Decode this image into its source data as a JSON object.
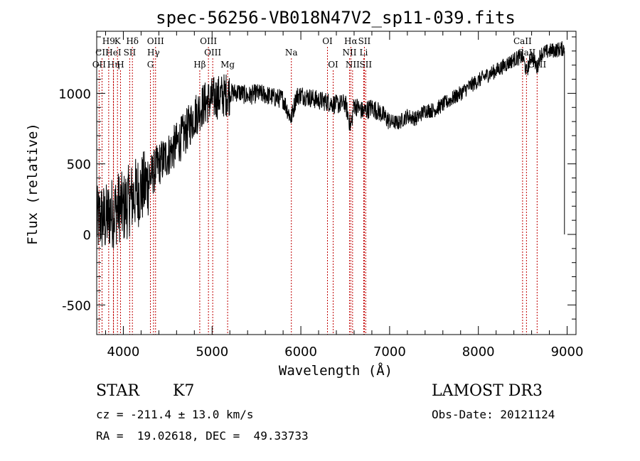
{
  "chart_data": {
    "type": "line",
    "title": "spec-56256-VB018N47V2_sp11-039.fits",
    "xlabel": "Wavelength (Å)",
    "ylabel": "Flux (relative)",
    "xlim": [
      3700,
      9100
    ],
    "ylim": [
      -710,
      1440
    ],
    "xticks": [
      4000,
      5000,
      6000,
      7000,
      8000,
      9000
    ],
    "yticks": [
      -500,
      0,
      500,
      1000
    ],
    "series": [
      {
        "name": "flux",
        "x": [
          3700,
          3750,
          3800,
          3850,
          3900,
          3950,
          4000,
          4050,
          4100,
          4150,
          4200,
          4250,
          4300,
          4350,
          4400,
          4450,
          4500,
          4550,
          4600,
          4650,
          4700,
          4750,
          4800,
          4850,
          4900,
          4950,
          5000,
          5100,
          5200,
          5300,
          5400,
          5500,
          5600,
          5700,
          5800,
          5890,
          5950,
          6000,
          6100,
          6200,
          6300,
          6400,
          6500,
          6563,
          6600,
          6700,
          6800,
          6900,
          7000,
          7100,
          7200,
          7300,
          7400,
          7500,
          7600,
          7700,
          7800,
          7900,
          8000,
          8100,
          8200,
          8300,
          8400,
          8500,
          8542,
          8600,
          8662,
          8700,
          8800,
          8900,
          8970
        ],
        "y": [
          80,
          120,
          100,
          150,
          160,
          200,
          180,
          230,
          260,
          300,
          320,
          350,
          400,
          450,
          500,
          530,
          560,
          600,
          640,
          680,
          720,
          780,
          840,
          880,
          920,
          940,
          960,
          980,
          1000,
          1010,
          980,
          1000,
          990,
          970,
          960,
          820,
          980,
          990,
          970,
          950,
          940,
          920,
          930,
          760,
          920,
          870,
          900,
          860,
          800,
          790,
          840,
          820,
          880,
          880,
          920,
          960,
          1000,
          1050,
          1090,
          1130,
          1160,
          1200,
          1240,
          1260,
          1150,
          1270,
          1180,
          1280,
          1300,
          1310,
          1320
        ]
      }
    ],
    "lines": [
      {
        "name": "OII",
        "wave": 3727,
        "row": 3
      },
      {
        "name": "H9",
        "wave": 3835,
        "row": 1
      },
      {
        "name": "CII",
        "wave": 3760,
        "row": 2
      },
      {
        "name": "Hη",
        "wave": 3889,
        "row": 3
      },
      {
        "name": "K",
        "wave": 3934,
        "row": 1
      },
      {
        "name": "HeI",
        "wave": 3888,
        "row": 2
      },
      {
        "name": "H",
        "wave": 3968,
        "row": 3
      },
      {
        "name": "SII",
        "wave": 4072,
        "row": 2
      },
      {
        "name": "Hδ",
        "wave": 4102,
        "row": 1
      },
      {
        "name": "OIII",
        "wave": 4363,
        "row": 1
      },
      {
        "name": "Hγ",
        "wave": 4340,
        "row": 2
      },
      {
        "name": "G",
        "wave": 4305,
        "row": 3
      },
      {
        "name": "Hβ",
        "wave": 4861,
        "row": 3
      },
      {
        "name": "OIII",
        "wave": 4959,
        "row": 1
      },
      {
        "name": "OIII",
        "wave": 5007,
        "row": 2
      },
      {
        "name": "Mg",
        "wave": 5175,
        "row": 3
      },
      {
        "name": "Na",
        "wave": 5893,
        "row": 2
      },
      {
        "name": "OI",
        "wave": 6300,
        "row": 1
      },
      {
        "name": "OI",
        "wave": 6364,
        "row": 3
      },
      {
        "name": "Hα",
        "wave": 6563,
        "row": 1
      },
      {
        "name": "NII",
        "wave": 6548,
        "row": 2
      },
      {
        "name": "NII",
        "wave": 6583,
        "row": 3
      },
      {
        "name": "SII",
        "wave": 6716,
        "row": 1
      },
      {
        "name": "Li",
        "wave": 6708,
        "row": 2
      },
      {
        "name": "SII",
        "wave": 6731,
        "row": 3
      },
      {
        "name": "CaII",
        "wave": 8498,
        "row": 1
      },
      {
        "name": "CaII",
        "wave": 8542,
        "row": 2
      },
      {
        "name": "CaII",
        "wave": 8662,
        "row": 3
      }
    ]
  },
  "info": {
    "class": "STAR",
    "subclass": "K7",
    "survey": "LAMOST DR3",
    "cz": "cz = -211.4 ± 13.0 km/s",
    "obs_date": "Obs-Date: 20121124",
    "radec": "RA =  19.02618, DEC =  49.33733"
  }
}
